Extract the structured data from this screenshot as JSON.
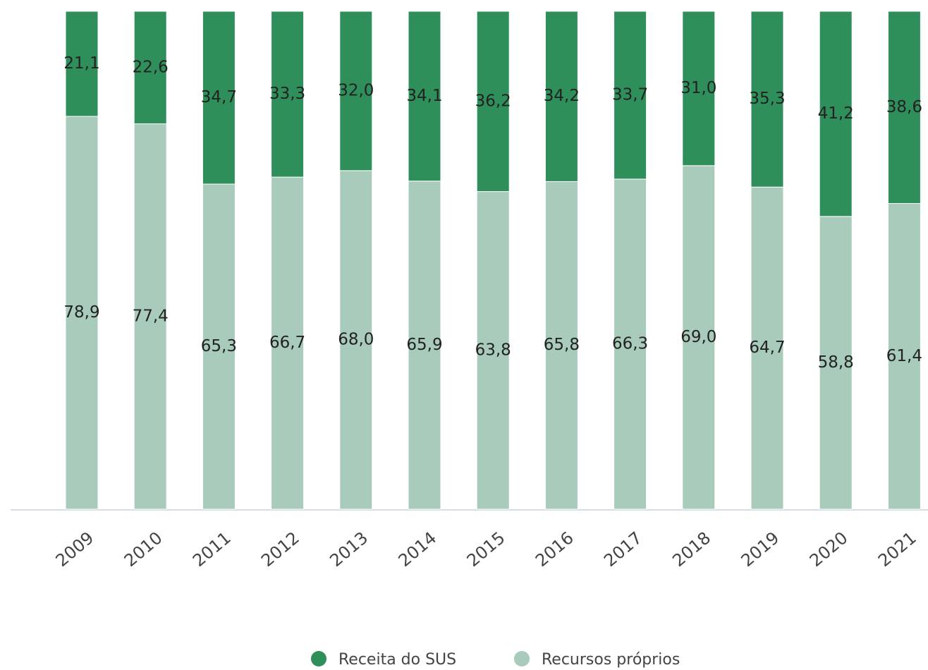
{
  "chart_data": {
    "type": "stacked_bar",
    "categories": [
      "2009",
      "2010",
      "2011",
      "2012",
      "2013",
      "2014",
      "2015",
      "2016",
      "2017",
      "2018",
      "2019",
      "2020",
      "2021"
    ],
    "series": [
      {
        "name": "Recursos próprios",
        "color": "#a8cbbb",
        "values": [
          78.9,
          77.4,
          65.3,
          66.7,
          68.0,
          65.9,
          63.8,
          65.8,
          66.3,
          69.0,
          64.7,
          58.8,
          61.4
        ],
        "value_labels": [
          "78,9",
          "77,4",
          "65,3",
          "66,7",
          "68,0",
          "65,9",
          "63,8",
          "65,8",
          "66,3",
          "69,0",
          "64,7",
          "58,8",
          "61,4"
        ]
      },
      {
        "name": "Receita do SUS",
        "color": "#2f8f5b",
        "values": [
          21.1,
          22.6,
          34.7,
          33.3,
          32.0,
          34.1,
          36.2,
          34.2,
          33.7,
          31.0,
          35.3,
          41.2,
          38.6
        ],
        "value_labels": [
          "21,1",
          "22,6",
          "34,7",
          "33,3",
          "32,0",
          "34,1",
          "36,2",
          "34,2",
          "33,7",
          "31,0",
          "35,3",
          "41,2",
          "38,6"
        ]
      }
    ],
    "ylim": [
      0,
      100
    ],
    "legend": "bottom"
  }
}
